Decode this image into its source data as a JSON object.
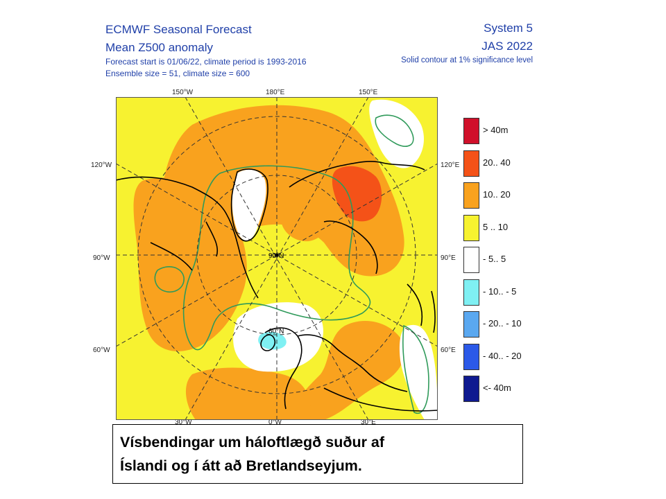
{
  "header": {
    "title": "ECMWF Seasonal Forecast",
    "subtitle": "Mean Z500 anomaly",
    "forecast_info": "Forecast start is 01/06/22, climate period is 1993-2016",
    "ensemble_info": "Ensemble size = 51, climate size = 600",
    "system": "System 5",
    "period": "JAS 2022",
    "significance": "Solid contour at 1% significance level"
  },
  "map": {
    "projection": "north-polar-stereographic",
    "pole_label": "90°N",
    "lat_label": "60°N",
    "lon_labels": {
      "top": [
        "150°W",
        "180°E",
        "150°E"
      ],
      "left": [
        "120°W",
        "90°W",
        "60°W"
      ],
      "right": [
        "120°E",
        "90°E",
        "60°E"
      ],
      "bottom": [
        "30°W",
        "0°W",
        "30°E"
      ]
    },
    "colors": {
      "above_40": "#d0102a",
      "c20_40": "#f45218",
      "c10_20": "#f9a21e",
      "c5_10": "#f7f230",
      "neutral": "#ffffff",
      "cm10_m5": "#7ff0f3",
      "cm20_m10": "#5aa8f0",
      "cm40_m20": "#2b59e8",
      "below_m40": "#0f1a90",
      "coast": "#000000",
      "grid": "#333333",
      "significance": "#2f9a5a"
    }
  },
  "legend": [
    {
      "label": "> 40m",
      "color": "#d0102a"
    },
    {
      "label": "20.. 40",
      "color": "#f45218"
    },
    {
      "label": "10.. 20",
      "color": "#f9a21e"
    },
    {
      "label": "5 .. 10",
      "color": "#f7f230"
    },
    {
      "label": "- 5.. 5",
      "color": "#ffffff"
    },
    {
      "label": "- 10.. - 5",
      "color": "#7ff0f3"
    },
    {
      "label": "- 20.. - 10",
      "color": "#5aa8f0"
    },
    {
      "label": "- 40.. - 20",
      "color": "#2b59e8"
    },
    {
      "label": "<- 40m",
      "color": "#0f1a90"
    }
  ],
  "caption": {
    "line1": "Vísbendingar um háloftlægð suður af",
    "line2": "Íslandi og í átt að Bretlandseyjum."
  }
}
